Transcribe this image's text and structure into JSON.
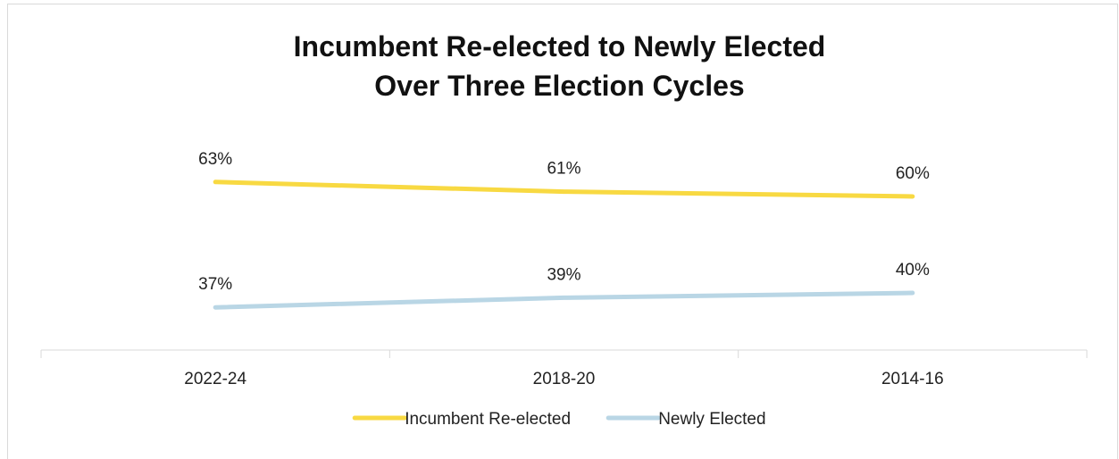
{
  "chart_data": {
    "type": "line",
    "title_lines": [
      "Incumbent Re-elected to Newly Elected",
      "Over Three Election Cycles"
    ],
    "categories": [
      "2022-24",
      "2018-20",
      "2014-16"
    ],
    "series": [
      {
        "name": "Incumbent Re-elected",
        "values": [
          63,
          61,
          60
        ],
        "labels": [
          "63%",
          "61%",
          "60%"
        ],
        "color": "#f8d942"
      },
      {
        "name": "Newly Elected",
        "values": [
          37,
          39,
          40
        ],
        "labels": [
          "37%",
          "39%",
          "40%"
        ],
        "color": "#b9d6e5"
      }
    ],
    "ylim": [
      0,
      100
    ],
    "grid": false,
    "legend": "bottom"
  }
}
